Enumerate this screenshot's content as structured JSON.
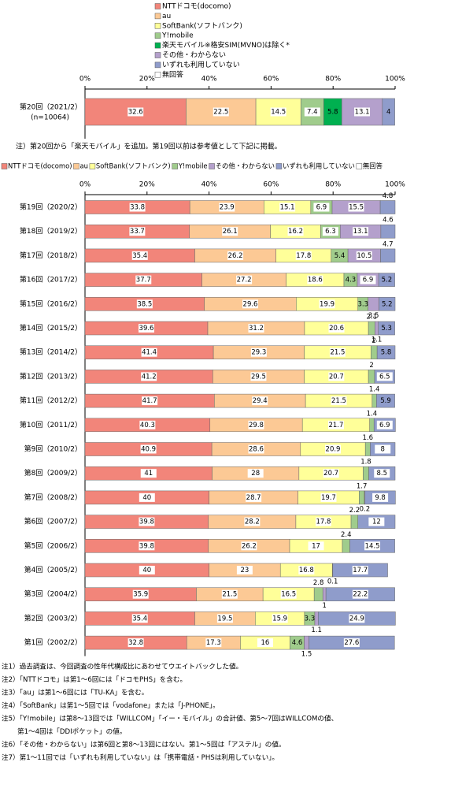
{
  "chart_data": [
    {
      "type": "stacked-bar-horizontal",
      "categories": [
        "第20回（2021/2）"
      ],
      "sample_label": "(n=10064)",
      "series": [
        {
          "name": "NTTドコモ(docomo)",
          "color": "#f2857a",
          "values": [
            32.6
          ]
        },
        {
          "name": "au",
          "color": "#fcc995",
          "values": [
            22.5
          ]
        },
        {
          "name": "SoftBank(ソフトバンク)",
          "color": "#ffff99",
          "values": [
            14.5
          ]
        },
        {
          "name": "Y!mobile",
          "color": "#a0cc8c",
          "values": [
            7.4
          ]
        },
        {
          "name": "楽天モバイル※格安SIM(MVNO)は除く*",
          "color": "#00b050",
          "values": [
            5.8
          ]
        },
        {
          "name": "その他・わからない",
          "color": "#b4a0cc",
          "values": [
            13.1
          ]
        },
        {
          "name": "いずれも利用していない",
          "color": "#8f9ccb",
          "values": [
            4.0
          ]
        },
        {
          "name": "無回答",
          "color": "#ffffff",
          "values": [
            null
          ]
        }
      ],
      "xlim": [
        0,
        100
      ],
      "xticks": [
        {
          "value": 0,
          "label": "0%"
        },
        {
          "value": 20,
          "label": "20%"
        },
        {
          "value": 40,
          "label": "40%"
        },
        {
          "value": 60,
          "label": "60%"
        },
        {
          "value": 80,
          "label": "80%"
        },
        {
          "value": 100,
          "label": "100%"
        }
      ],
      "annotation": "注）第20回から「楽天モバイル」を追加。第19回以前は参考値として下記に掲載。"
    },
    {
      "type": "stacked-bar-horizontal",
      "categories": [
        "第19回（2020/2）",
        "第18回（2019/2）",
        "第17回（2018/2）",
        "第16回（2017/2）",
        "第15回（2016/2）",
        "第14回（2015/2）",
        "第13回（2014/2）",
        "第12回（2013/2）",
        "第11回（2012/2）",
        "第10回（2011/2）",
        "第9回（2010/2）",
        "第8回（2009/2）",
        "第7回（2008/2）",
        "第6回（2007/2）",
        "第5回（2006/2）",
        "第4回（2005/2）",
        "第3回（2004/2）",
        "第2回（2003/2）",
        "第1回（2002/2）"
      ],
      "series": [
        {
          "name": "NTTドコモ(docomo)",
          "color": "#f2857a",
          "values": [
            33.8,
            33.7,
            35.4,
            37.7,
            38.5,
            39.6,
            41.4,
            41.2,
            41.7,
            40.3,
            40.9,
            41.0,
            40.0,
            39.8,
            39.8,
            40.0,
            35.9,
            35.4,
            32.8
          ]
        },
        {
          "name": "au",
          "color": "#fcc995",
          "values": [
            23.9,
            26.1,
            26.2,
            27.2,
            29.6,
            31.2,
            29.3,
            29.5,
            29.4,
            29.8,
            28.6,
            28.0,
            28.7,
            28.2,
            26.2,
            23.0,
            21.5,
            19.5,
            17.3
          ]
        },
        {
          "name": "SoftBank(ソフトバンク)",
          "color": "#ffff99",
          "values": [
            15.1,
            16.2,
            17.8,
            18.6,
            19.9,
            20.6,
            21.5,
            20.7,
            21.5,
            21.7,
            20.9,
            20.7,
            19.7,
            17.8,
            17.0,
            16.8,
            16.5,
            15.9,
            16.0
          ]
        },
        {
          "name": "Y!mobile",
          "color": "#a0cc8c",
          "values": [
            6.9,
            6.3,
            5.4,
            4.3,
            3.3,
            2.1,
            2.0,
            2.0,
            1.4,
            1.4,
            1.6,
            1.8,
            1.7,
            2.2,
            2.4,
            null,
            2.8,
            3.3,
            4.6
          ]
        },
        {
          "name": "その他・わからない",
          "color": "#b4a0cc",
          "values": [
            15.5,
            13.1,
            10.5,
            6.9,
            3.5,
            1.1,
            null,
            null,
            null,
            null,
            null,
            null,
            0.2,
            null,
            null,
            0.1,
            1.0,
            1.1,
            1.5
          ]
        },
        {
          "name": "いずれも利用していない",
          "color": "#8f9ccb",
          "values": [
            4.8,
            4.6,
            4.7,
            5.2,
            5.2,
            5.3,
            5.8,
            6.5,
            5.9,
            6.9,
            8.0,
            8.5,
            9.8,
            12.0,
            14.5,
            17.7,
            22.2,
            24.9,
            27.6
          ]
        },
        {
          "name": "無回答",
          "color": "#ffffff",
          "values": [
            null,
            null,
            null,
            null,
            null,
            null,
            null,
            null,
            null,
            null,
            null,
            null,
            null,
            null,
            null,
            null,
            null,
            null,
            null
          ]
        }
      ],
      "xlim": [
        0,
        100
      ],
      "xticks": [
        {
          "value": 0,
          "label": "0%"
        },
        {
          "value": 20,
          "label": "20%"
        },
        {
          "value": 40,
          "label": "40%"
        },
        {
          "value": 60,
          "label": "60%"
        },
        {
          "value": 80,
          "label": "80%"
        },
        {
          "value": 100,
          "label": "100%"
        }
      ],
      "notes": [
        "注1）過去調査は、今回調査の性年代構成比にあわせてウエイトバックした値。",
        "注2）「NTTドコモ」は第1～6回には「ドコモPHS」を含む。",
        "注3）「au」は第1～6回には「TU-KA」を含む。",
        "注4）「SoftBank」は第1～5回では「vodafone」または「J-PHONE」。",
        "注5）「Y!mobile」は第8～13回では「WILLCOM」「イー・モバイル」の合計値、第5～7回はWILLCOMの値、",
        "第1～4回は「DDIポケット」の値。",
        "注6）「その他・わからない」は第6回と第8～13回にはない。第1～5回は「アステル」の値。",
        "注7）第1～11回では「いずれも利用していない」は「携帯電話・PHSは利用していない」。"
      ]
    }
  ]
}
